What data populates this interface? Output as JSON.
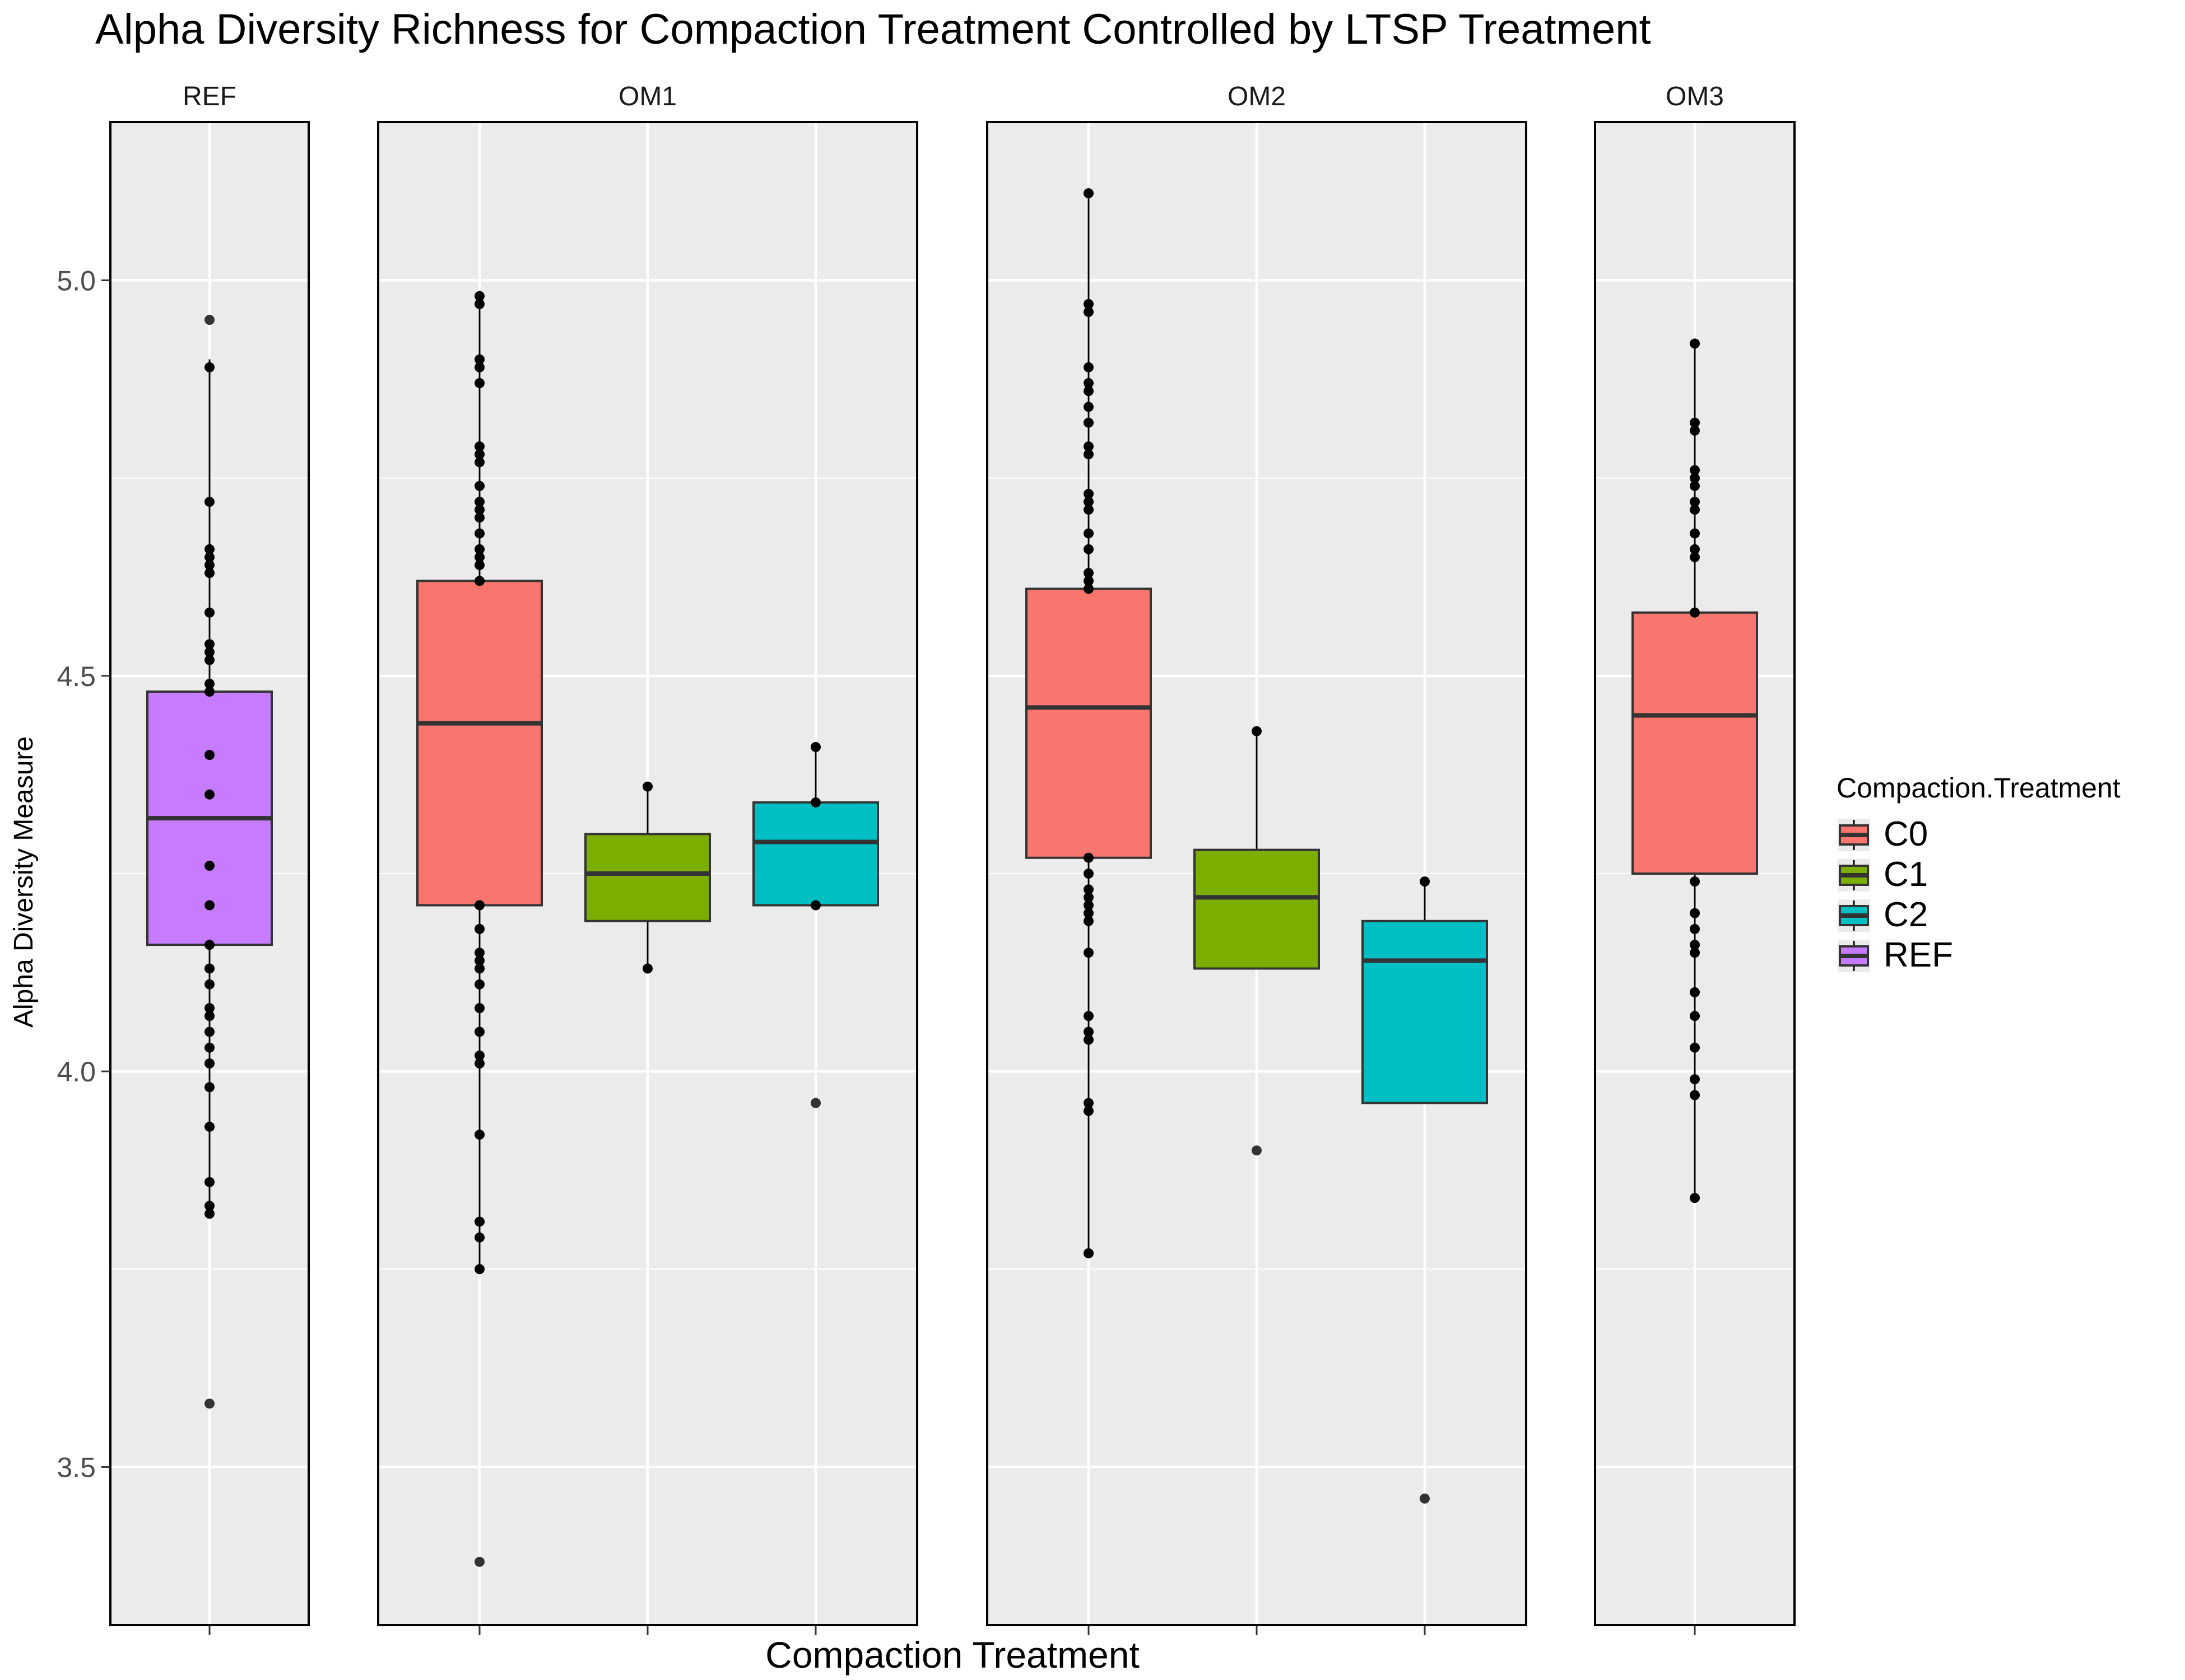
{
  "chart_data": {
    "type": "box",
    "title": "Alpha Diversity Richness for Compaction Treatment Controlled by LTSP Treatment",
    "xlabel": "Compaction Treatment",
    "ylabel": "Alpha Diversity Measure",
    "ylim": [
      3.3,
      5.2
    ],
    "y_ticks": [
      "3.5",
      "4.0",
      "4.5",
      "5.0"
    ],
    "grid": true,
    "legend": {
      "title": "Compaction.Treatment",
      "position": "right",
      "entries": [
        {
          "label": "C0",
          "color": "#F8766D"
        },
        {
          "label": "C1",
          "color": "#7CAE00"
        },
        {
          "label": "C2",
          "color": "#00BFC4"
        },
        {
          "label": "REF",
          "color": "#C77CFF"
        }
      ]
    },
    "facets": [
      {
        "label": "REF",
        "categories": [
          "REF"
        ],
        "boxes": [
          {
            "group": "REF",
            "color": "#C77CFF",
            "whisker_low": 3.82,
            "q1": 4.16,
            "median": 4.32,
            "q3": 4.48,
            "whisker_high": 4.9,
            "outliers": [
              3.58,
              4.95
            ],
            "points": [
              3.82,
              3.83,
              3.86,
              3.93,
              3.98,
              4.01,
              4.03,
              4.05,
              4.07,
              4.08,
              4.11,
              4.13,
              4.16,
              4.21,
              4.26,
              4.35,
              4.4,
              4.48,
              4.49,
              4.52,
              4.53,
              4.54,
              4.58,
              4.63,
              4.64,
              4.65,
              4.66,
              4.72,
              4.89
            ]
          }
        ]
      },
      {
        "label": "OM1",
        "categories": [
          "C0",
          "C1",
          "C2"
        ],
        "boxes": [
          {
            "group": "C0",
            "color": "#F8766D",
            "whisker_low": 3.75,
            "q1": 4.21,
            "median": 4.44,
            "q3": 4.62,
            "whisker_high": 4.98,
            "outliers": [
              3.38
            ],
            "points": [
              3.75,
              3.79,
              3.81,
              3.92,
              4.01,
              4.02,
              4.05,
              4.08,
              4.11,
              4.13,
              4.14,
              4.15,
              4.18,
              4.21,
              4.62,
              4.64,
              4.65,
              4.66,
              4.68,
              4.7,
              4.71,
              4.72,
              4.74,
              4.77,
              4.78,
              4.79,
              4.87,
              4.89,
              4.9,
              4.97,
              4.98
            ]
          },
          {
            "group": "C1",
            "color": "#7CAE00",
            "whisker_low": 4.13,
            "q1": 4.19,
            "median": 4.25,
            "q3": 4.3,
            "whisker_high": 4.36,
            "outliers": [],
            "points": [
              4.13,
              4.36
            ]
          },
          {
            "group": "C2",
            "color": "#00BFC4",
            "whisker_low": 4.21,
            "q1": 4.21,
            "median": 4.29,
            "q3": 4.34,
            "whisker_high": 4.41,
            "outliers": [
              3.96
            ],
            "points": [
              4.21,
              4.34,
              4.41
            ]
          }
        ]
      },
      {
        "label": "OM2",
        "categories": [
          "C0",
          "C1",
          "C2"
        ],
        "boxes": [
          {
            "group": "C0",
            "color": "#F8766D",
            "whisker_low": 3.77,
            "q1": 4.27,
            "median": 4.46,
            "q3": 4.61,
            "whisker_high": 5.11,
            "outliers": [],
            "points": [
              3.77,
              3.77,
              3.95,
              3.96,
              4.04,
              4.05,
              4.07,
              4.15,
              4.19,
              4.2,
              4.21,
              4.22,
              4.23,
              4.25,
              4.27,
              4.61,
              4.62,
              4.63,
              4.66,
              4.68,
              4.71,
              4.72,
              4.73,
              4.78,
              4.79,
              4.82,
              4.84,
              4.86,
              4.87,
              4.89,
              4.96,
              4.97,
              5.11
            ]
          },
          {
            "group": "C1",
            "color": "#7CAE00",
            "whisker_low": 4.13,
            "q1": 4.13,
            "median": 4.22,
            "q3": 4.28,
            "whisker_high": 4.43,
            "outliers": [
              3.9
            ],
            "points": [
              4.43
            ]
          },
          {
            "group": "C2",
            "color": "#00BFC4",
            "whisker_low": 3.96,
            "q1": 3.96,
            "median": 4.14,
            "q3": 4.19,
            "whisker_high": 4.24,
            "outliers": [
              3.46
            ],
            "points": [
              4.24
            ]
          }
        ]
      },
      {
        "label": "OM3",
        "categories": [
          "C0"
        ],
        "boxes": [
          {
            "group": "C0",
            "color": "#F8766D",
            "whisker_low": 3.84,
            "q1": 4.25,
            "median": 4.45,
            "q3": 4.58,
            "whisker_high": 4.92,
            "outliers": [],
            "points": [
              3.84,
              3.97,
              3.99,
              4.03,
              4.07,
              4.1,
              4.15,
              4.16,
              4.18,
              4.2,
              4.24,
              4.58,
              4.65,
              4.66,
              4.68,
              4.71,
              4.72,
              4.74,
              4.75,
              4.76,
              4.81,
              4.82,
              4.92
            ]
          }
        ]
      }
    ]
  }
}
